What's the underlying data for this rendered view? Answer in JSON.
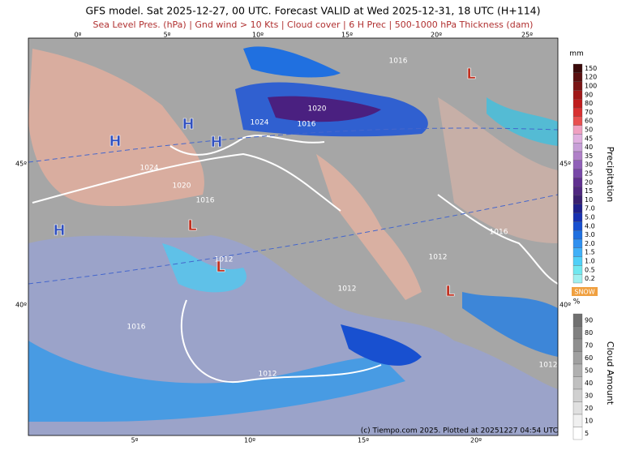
{
  "header": {
    "title": "GFS model. Sat 2025-12-27, 00 UTC. Forecast VALID at Wed 2025-12-31, 18 UTC (H+114)",
    "subtitle": "Sea Level Pres. (hPa) | Gnd wind > 10 Kts | Cloud cover | 6 H Prec | 500-1000 hPa Thickness (dam)"
  },
  "map": {
    "top_lon": [
      "0º",
      "5º",
      "10º",
      "15º",
      "20º",
      "25º"
    ],
    "bottom_lon": [
      "5º",
      "10º",
      "15º",
      "20º"
    ],
    "left_lat": [
      "45º",
      "40º"
    ],
    "right_lat": [
      "45º",
      "40º"
    ],
    "pressure_labels": [
      "1024",
      "1020",
      "1016",
      "1024",
      "1020",
      "1016",
      "1016",
      "1012",
      "1012",
      "1012",
      "1016",
      "1016",
      "1012",
      "1012"
    ],
    "centers": [
      "H",
      "H",
      "H",
      "H",
      "L",
      "L",
      "L",
      "L"
    ],
    "credit": "(c) Tiempo.com 2025. Plotted at 20251227 04:54 UTC"
  },
  "precip_legend": {
    "unit": "mm",
    "title": "Precipitation",
    "levels": [
      "150",
      "120",
      "100",
      "90",
      "80",
      "70",
      "60",
      "50",
      "45",
      "40",
      "35",
      "30",
      "25",
      "20",
      "15",
      "10",
      "7.0",
      "5.0",
      "4.0",
      "3.0",
      "2.0",
      "1.5",
      "1.0",
      "0.5",
      "0.2"
    ]
  },
  "snow_label": "SNOW",
  "cloud_legend": {
    "unit": "%",
    "title": "Cloud Amount",
    "levels": [
      "90",
      "80",
      "70",
      "60",
      "50",
      "40",
      "30",
      "20",
      "10",
      "5"
    ]
  }
}
